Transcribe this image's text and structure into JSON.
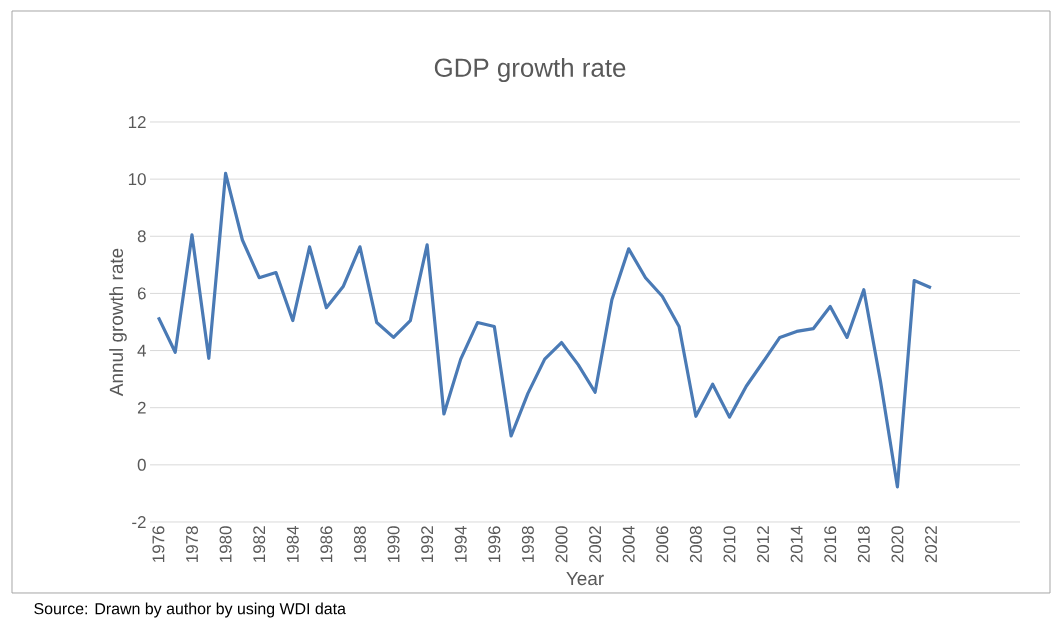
{
  "chart_data": {
    "type": "line",
    "title": "GDP growth rate",
    "xlabel": "Year",
    "ylabel": "Annul growth rate",
    "categories": [
      "1976",
      null,
      "1978",
      null,
      "1980",
      null,
      "1982",
      null,
      "1984",
      null,
      "1986",
      null,
      "1988",
      null,
      "1990",
      null,
      "1992",
      null,
      "1994",
      null,
      "1996",
      null,
      "1998",
      null,
      "2000",
      null,
      "2002",
      null,
      "2004",
      null,
      "2006",
      null,
      "2008",
      null,
      "2010",
      null,
      "2012",
      null,
      "2014",
      null,
      "2016",
      null,
      "2018",
      null,
      "2020",
      null,
      "2022"
    ],
    "values": [
      5.16,
      3.94,
      8.05,
      3.73,
      10.2,
      7.87,
      6.55,
      6.73,
      5.05,
      7.63,
      5.5,
      6.24,
      7.63,
      4.98,
      4.46,
      5.05,
      7.7,
      1.78,
      3.7,
      4.98,
      4.84,
      1.01,
      2.5,
      3.7,
      4.28,
      3.5,
      2.54,
      5.78,
      7.56,
      6.55,
      5.9,
      4.84,
      1.7,
      2.82,
      1.67,
      2.75,
      3.6,
      4.46,
      4.67,
      4.77,
      5.54,
      4.46,
      6.13,
      2.9,
      -0.77,
      6.45,
      6.2
    ],
    "color": "#4a7ab5",
    "ylim": [
      -2,
      12
    ],
    "yticks": [
      -2,
      0,
      2,
      4,
      6,
      8,
      10,
      12
    ],
    "grid": "y",
    "annotations": [
      "Source: Drawn by author by using WDI data"
    ]
  }
}
